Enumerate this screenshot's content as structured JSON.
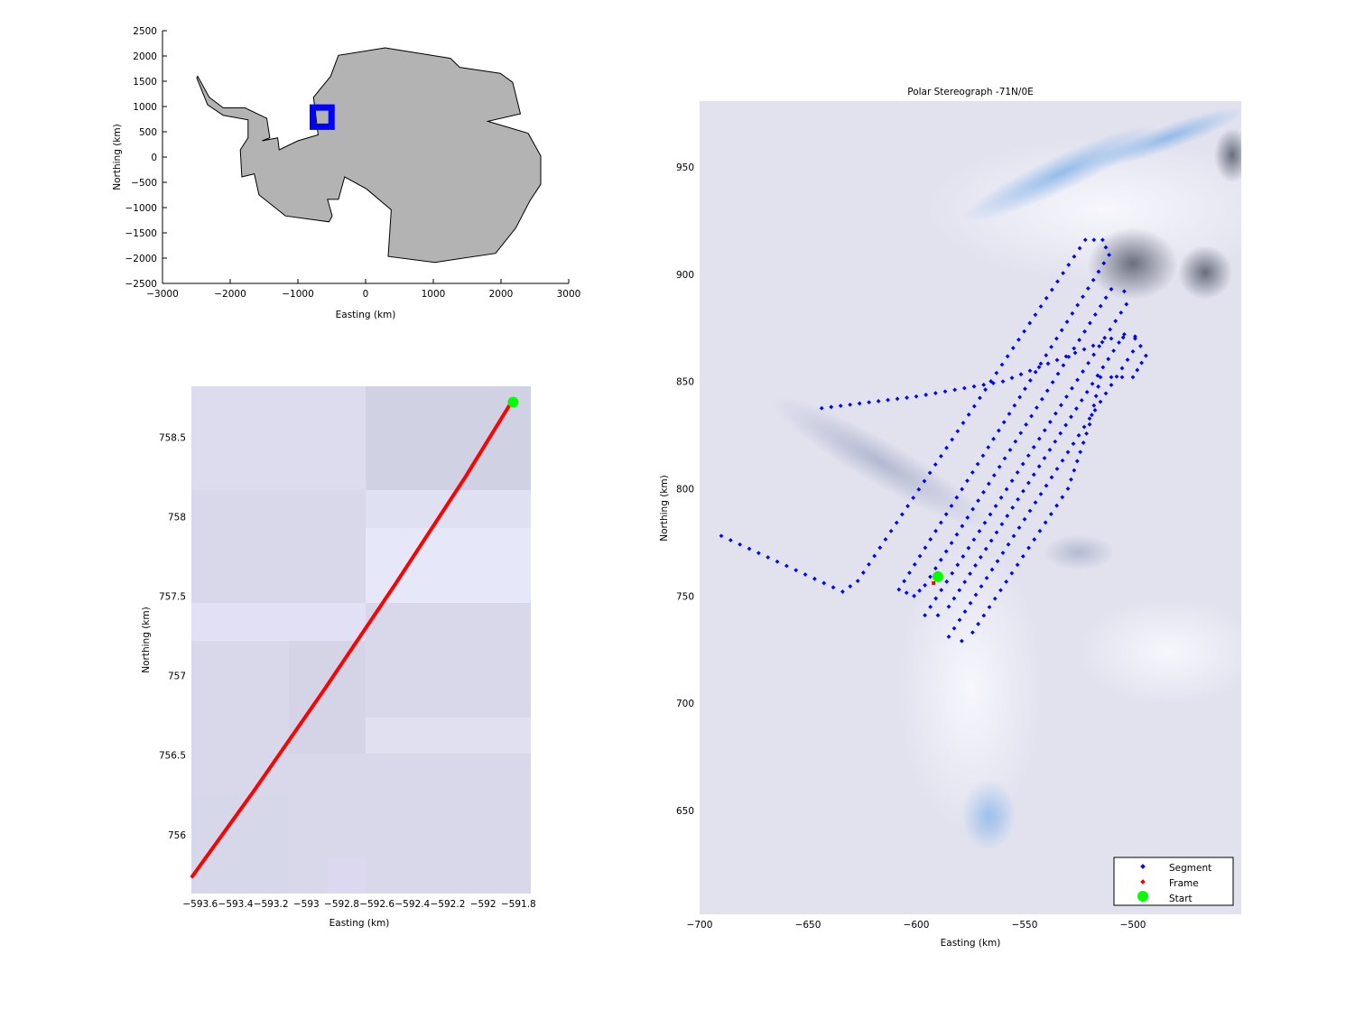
{
  "chart_data": [
    {
      "type": "area",
      "xlabel": "Easting (km)",
      "ylabel": "Northing (km)",
      "xlim": [
        -3000,
        3000
      ],
      "ylim": [
        -2500,
        2500
      ],
      "xticks": [
        -3000,
        -2000,
        -1000,
        0,
        1000,
        2000,
        3000
      ],
      "yticks": [
        -2500,
        -2000,
        -1500,
        -1000,
        -500,
        0,
        500,
        1000,
        1500,
        2000,
        2500
      ],
      "grid": false,
      "land_color": "#b3b3b3",
      "highlight_box": {
        "x": [
          -700,
          -450
        ],
        "y": [
          600,
          980
        ],
        "color": "#0000ff"
      }
    },
    {
      "type": "line",
      "xlabel": "Easting (km)",
      "ylabel": "Northing (km)",
      "xlim": [
        -593.65,
        -591.73
      ],
      "ylim": [
        755.63,
        758.82
      ],
      "xticks": [
        -593.6,
        -593.4,
        -593.2,
        -593,
        -592.8,
        -592.6,
        -592.4,
        -592.2,
        -592,
        -591.8
      ],
      "yticks": [
        756,
        756.5,
        757,
        757.5,
        758,
        758.5
      ],
      "grid": false,
      "series": [
        {
          "name": "Frame",
          "color": "#ff0000",
          "x": [
            -593.65,
            -593.3,
            -592.9,
            -592.5,
            -592.1,
            -591.84
          ],
          "y": [
            755.73,
            756.27,
            756.91,
            757.57,
            758.25,
            758.72
          ]
        },
        {
          "name": "Start",
          "color": "#00ff00",
          "x": [
            -591.83
          ],
          "y": [
            758.72
          ]
        }
      ]
    },
    {
      "type": "scatter",
      "title": "Polar Stereograph -71N/0E",
      "xlabel": "Easting (km)",
      "ylabel": "Northing (km)",
      "xlim": [
        -700,
        -450
      ],
      "ylim": [
        601.6,
        980.7
      ],
      "xticks": [
        -700,
        -650,
        -600,
        -550,
        -500
      ],
      "yticks": [
        650,
        700,
        750,
        800,
        850,
        900,
        950
      ],
      "grid": false,
      "legend": {
        "placement": "bottom-right",
        "entries": [
          "Segment",
          "Frame",
          "Start"
        ]
      },
      "series": [
        {
          "name": "Segment",
          "color": "#0000ff",
          "path": [
            [
              -690,
              778
            ],
            [
              -634,
              752
            ],
            [
              -627,
              757
            ],
            [
              -522,
              916
            ],
            [
              -514,
              916
            ],
            [
              -511,
              909
            ],
            [
              -608,
              753
            ],
            [
              -601,
              750
            ],
            [
              -596,
              755
            ],
            [
              -510,
              893
            ],
            [
              -504,
              892
            ],
            [
              -503,
              886
            ],
            [
              -596,
              741
            ],
            [
              -590,
              741
            ],
            [
              -585,
              745
            ],
            [
              -504,
              872
            ],
            [
              -499,
              870
            ],
            [
              -500,
              864
            ],
            [
              -585,
              731
            ],
            [
              -579,
              729
            ],
            [
              -574,
              733
            ],
            [
              -530,
              800
            ],
            [
              -520,
              830
            ],
            [
              -515,
              852
            ],
            [
              -500,
              852
            ],
            [
              -494,
              862
            ],
            [
              -499,
              871
            ],
            [
              -510,
              870
            ],
            [
              -560,
              850
            ],
            [
              -600,
              843
            ],
            [
              -648,
              837
            ]
          ]
        },
        {
          "name": "Frame",
          "color": "#ff0000",
          "x": [
            -592
          ],
          "y": [
            756
          ]
        },
        {
          "name": "Start",
          "color": "#00ff00",
          "x": [
            -590
          ],
          "y": [
            759
          ]
        }
      ]
    }
  ]
}
